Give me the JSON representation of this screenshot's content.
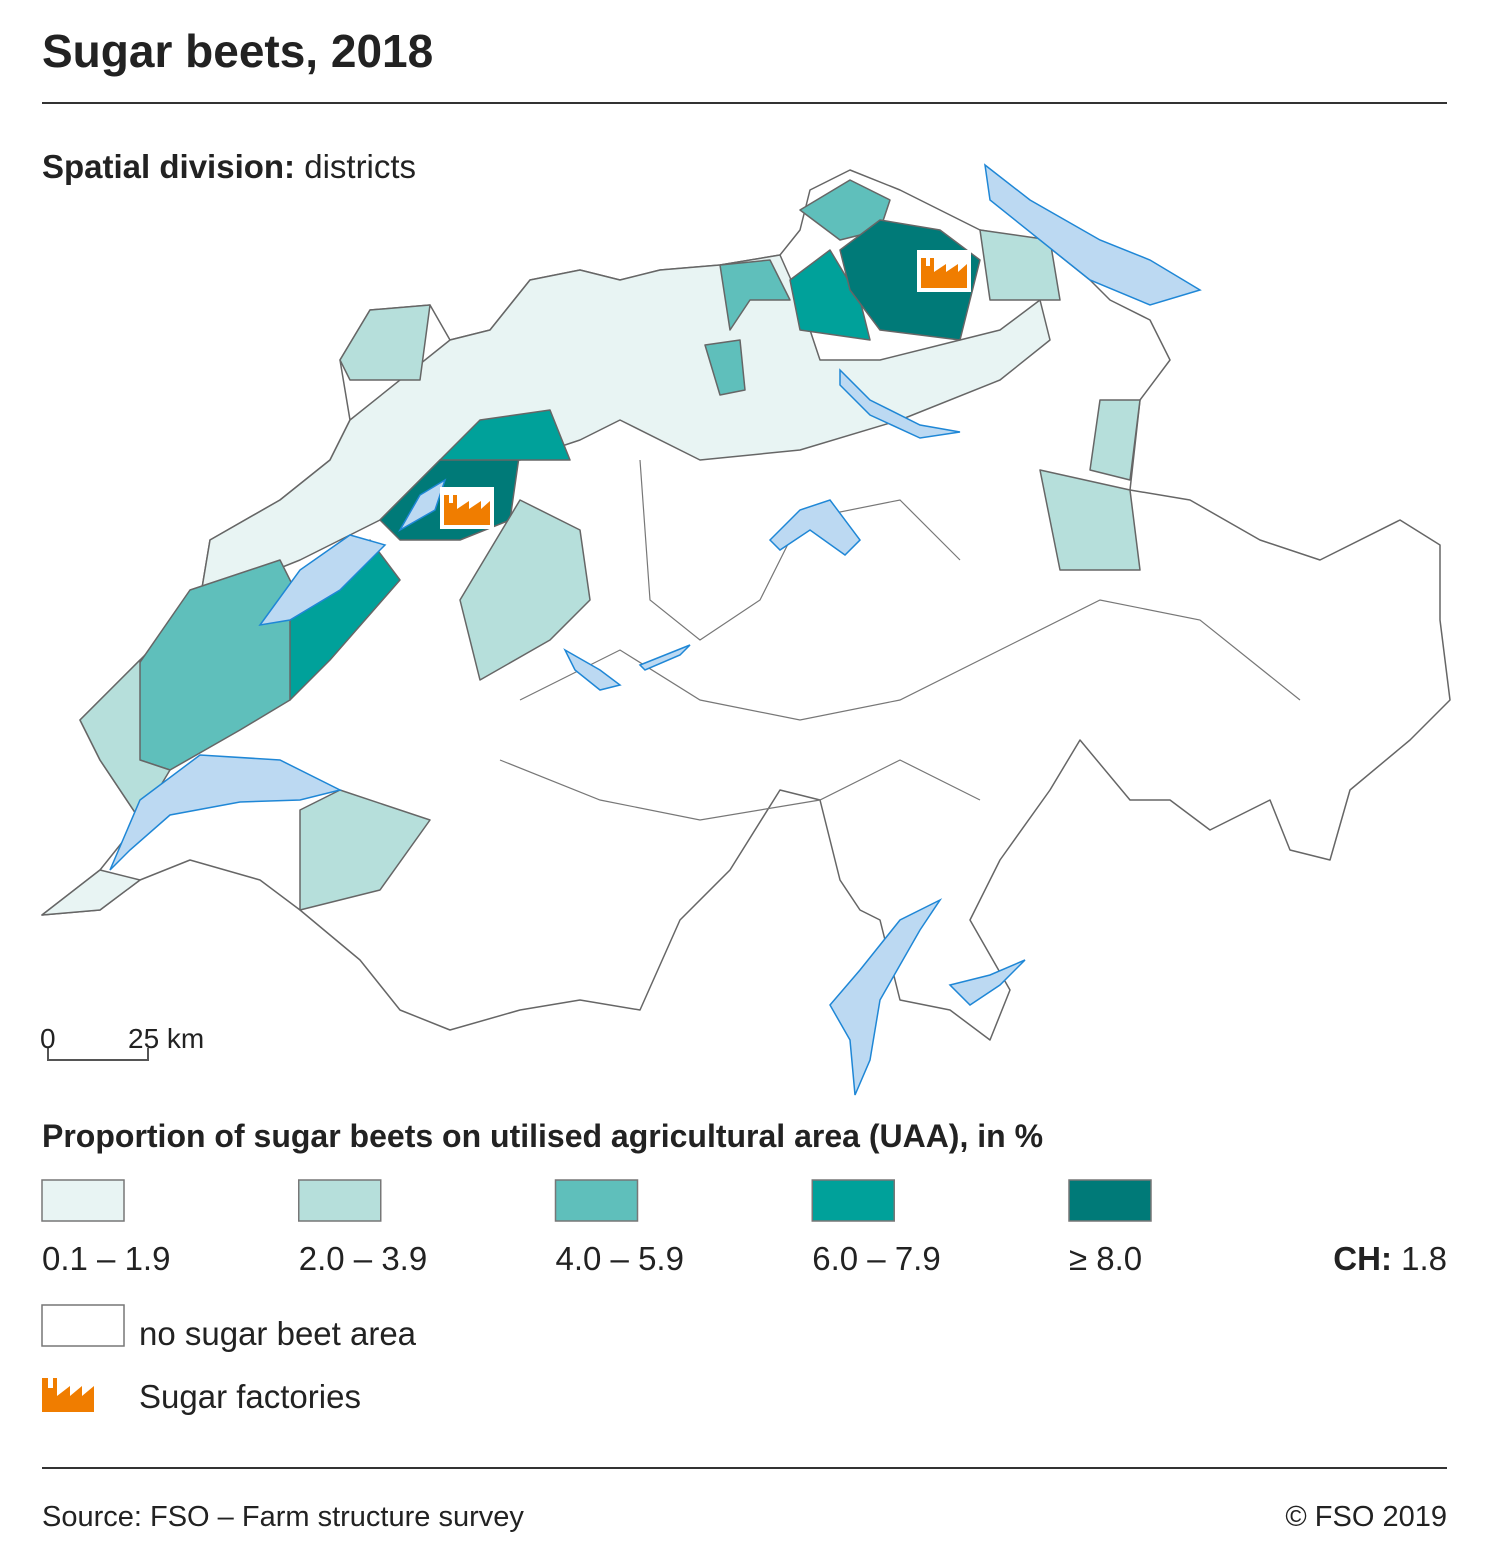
{
  "header": {
    "title": "Sugar beets, 2018",
    "subtitle_label": "Spatial division:",
    "subtitle_value": "districts"
  },
  "map": {
    "scale": {
      "start": "0",
      "end": "25 km"
    }
  },
  "legend": {
    "title": "Proportion of sugar beets on utilised agricultural area (UAA), in %",
    "classes": [
      {
        "label": "0.1 – 1.9",
        "color": "#e8f4f3"
      },
      {
        "label": "2.0 – 3.9",
        "color": "#b6dfdb"
      },
      {
        "label": "4.0 – 5.9",
        "color": "#5fbfbb"
      },
      {
        "label": "6.0 – 7.9",
        "color": "#00a19a"
      },
      {
        "label": "≥ 8.0",
        "color": "#007a78"
      }
    ],
    "total": {
      "label": "CH:",
      "value": 1.8
    },
    "no_data": {
      "label": "no sugar beet area",
      "color": "#ffffff"
    },
    "factories": {
      "label": "Sugar factories",
      "color": "#f07d00"
    }
  },
  "footer": {
    "source": "Source: FSO – Farm structure survey",
    "copyright": "© FSO 2019"
  }
}
